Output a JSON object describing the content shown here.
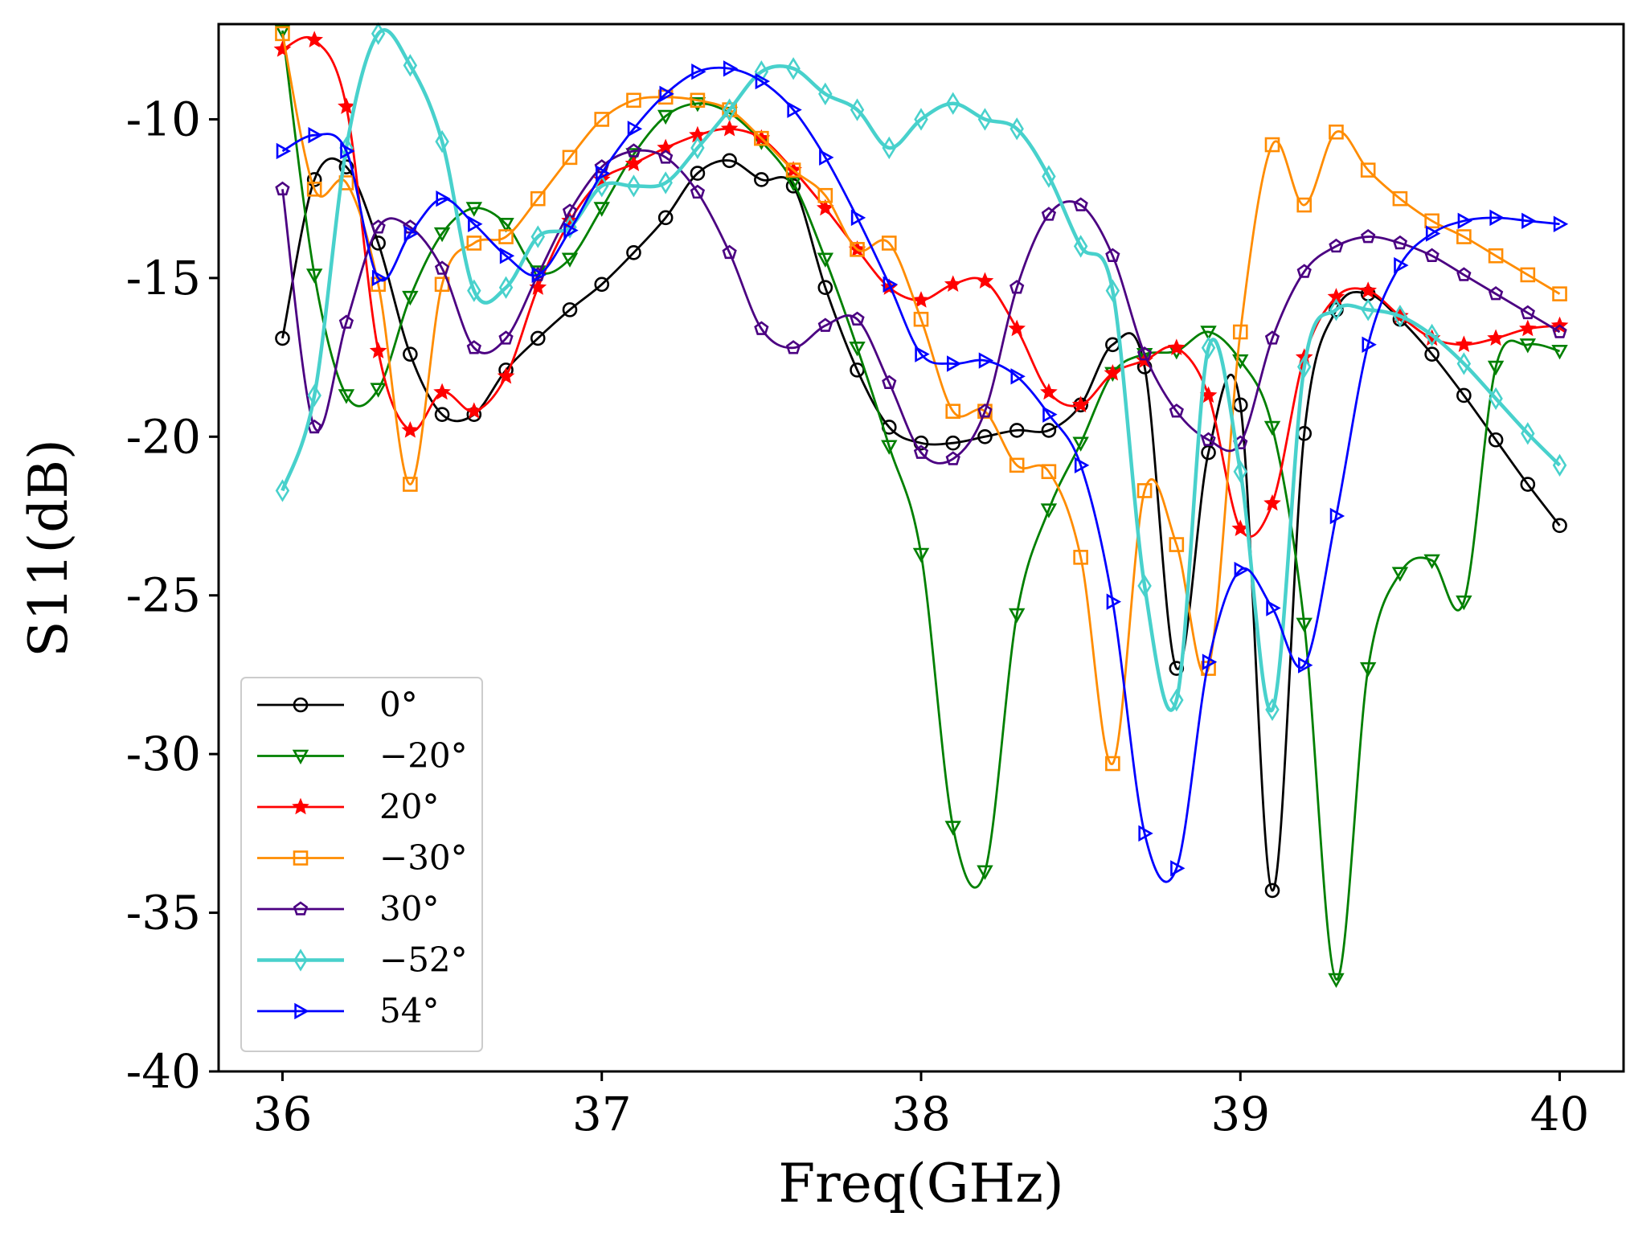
{
  "chart_data": {
    "type": "line",
    "title": "",
    "xlabel": "Freq(GHz)",
    "ylabel": "S11(dB)",
    "xlim": [
      35.8,
      40.2
    ],
    "ylim": [
      -40,
      -7
    ],
    "xticks": [
      36,
      37,
      38,
      39,
      40
    ],
    "xtick_labels": [
      "36",
      "37",
      "38",
      "39",
      "40"
    ],
    "yticks": [
      -40,
      -35,
      -30,
      -25,
      -20,
      -15,
      -10
    ],
    "ytick_labels": [
      "-40",
      "-35",
      "-30",
      "-25",
      "-20",
      "-15",
      "-10"
    ],
    "grid": false,
    "legend_position": "lower-left",
    "x": [
      36.0,
      36.1,
      36.2,
      36.3,
      36.4,
      36.5,
      36.6,
      36.7,
      36.8,
      36.9,
      37.0,
      37.1,
      37.2,
      37.3,
      37.4,
      37.5,
      37.6,
      37.7,
      37.8,
      37.9,
      38.0,
      38.1,
      38.2,
      38.3,
      38.4,
      38.5,
      38.6,
      38.7,
      38.8,
      38.9,
      39.0,
      39.1,
      39.2,
      39.3,
      39.4,
      39.5,
      39.6,
      39.7,
      39.8,
      39.9,
      40.0
    ],
    "series": [
      {
        "name": "0°",
        "color": "#000000",
        "marker": "circle",
        "values": [
          -16.9,
          -11.9,
          -11.5,
          -13.9,
          -17.4,
          -19.3,
          -19.3,
          -17.9,
          -16.9,
          -16.0,
          -15.2,
          -14.2,
          -13.1,
          -11.7,
          -11.3,
          -11.9,
          -12.1,
          -15.3,
          -17.9,
          -19.7,
          -20.2,
          -20.2,
          -20.0,
          -19.8,
          -19.8,
          -19.0,
          -17.1,
          -17.8,
          -27.3,
          -20.5,
          -19.0,
          -34.3,
          -19.9,
          -16.0,
          -15.5,
          -16.3,
          -17.4,
          -18.7,
          -20.1,
          -21.5,
          -22.8
        ]
      },
      {
        "name": "−20°",
        "color": "#008000",
        "marker": "triangle-down",
        "values": [
          -7.2,
          -14.9,
          -18.7,
          -18.5,
          -15.6,
          -13.6,
          -12.8,
          -13.3,
          -14.8,
          -14.4,
          -12.8,
          -11.1,
          -9.9,
          -9.5,
          -9.8,
          -10.7,
          -12.0,
          -14.4,
          -17.2,
          -20.3,
          -23.7,
          -32.3,
          -33.7,
          -25.6,
          -22.3,
          -20.2,
          -18.0,
          -17.4,
          -17.3,
          -16.7,
          -17.6,
          -19.7,
          -25.9,
          -37.1,
          -27.3,
          -24.3,
          -23.9,
          -25.2,
          -17.8,
          -17.1,
          -17.3
        ]
      },
      {
        "name": "20°",
        "color": "#ff0000",
        "marker": "star",
        "values": [
          -7.8,
          -7.5,
          -9.6,
          -17.3,
          -19.8,
          -18.6,
          -19.2,
          -18.1,
          -15.3,
          -13.2,
          -11.9,
          -11.4,
          -10.9,
          -10.5,
          -10.3,
          -10.6,
          -11.6,
          -12.8,
          -14.1,
          -15.3,
          -15.7,
          -15.2,
          -15.1,
          -16.6,
          -18.6,
          -19.0,
          -18.0,
          -17.6,
          -17.2,
          -18.7,
          -22.9,
          -22.1,
          -17.5,
          -15.6,
          -15.4,
          -16.2,
          -16.9,
          -17.1,
          -16.9,
          -16.6,
          -16.5
        ]
      },
      {
        "name": "−30°",
        "color": "#ff8c00",
        "marker": "square",
        "values": [
          -7.3,
          -12.2,
          -12.0,
          -15.2,
          -21.5,
          -15.2,
          -13.9,
          -13.7,
          -12.5,
          -11.2,
          -10.0,
          -9.4,
          -9.3,
          -9.4,
          -9.7,
          -10.6,
          -11.6,
          -12.4,
          -14.1,
          -13.9,
          -16.3,
          -19.2,
          -19.2,
          -20.9,
          -21.1,
          -23.8,
          -30.3,
          -21.7,
          -23.4,
          -27.3,
          -16.7,
          -10.8,
          -12.7,
          -10.4,
          -11.6,
          -12.5,
          -13.2,
          -13.7,
          -14.3,
          -14.9,
          -15.5
        ]
      },
      {
        "name": "30°",
        "color": "#4b0082",
        "marker": "pentagon",
        "values": [
          -12.2,
          -19.7,
          -16.4,
          -13.4,
          -13.4,
          -14.7,
          -17.2,
          -16.9,
          -14.9,
          -12.9,
          -11.5,
          -11.0,
          -11.2,
          -12.3,
          -14.2,
          -16.6,
          -17.2,
          -16.5,
          -16.3,
          -18.3,
          -20.5,
          -20.7,
          -19.2,
          -15.3,
          -13.0,
          -12.7,
          -14.3,
          -17.4,
          -19.2,
          -20.1,
          -20.2,
          -16.9,
          -14.8,
          -14.0,
          -13.7,
          -13.9,
          -14.3,
          -14.9,
          -15.5,
          -16.1,
          -16.7
        ]
      },
      {
        "name": "−52°",
        "color": "#48d1cc",
        "marker": "diamond",
        "values": [
          -21.7,
          -18.7,
          -10.9,
          -7.3,
          -8.3,
          -10.7,
          -15.4,
          -15.3,
          -13.7,
          -13.4,
          -12.1,
          -12.1,
          -12.0,
          -10.9,
          -9.7,
          -8.5,
          -8.4,
          -9.2,
          -9.7,
          -10.9,
          -10.0,
          -9.5,
          -10.0,
          -10.3,
          -11.8,
          -14.0,
          -15.4,
          -24.7,
          -28.3,
          -17.2,
          -21.1,
          -28.6,
          -17.8,
          -16.0,
          -16.0,
          -16.2,
          -16.8,
          -17.7,
          -18.8,
          -19.9,
          -20.9
        ]
      },
      {
        "name": "54°",
        "color": "#0000ff",
        "marker": "triangle-right",
        "values": [
          -11.0,
          -10.5,
          -11.0,
          -15.0,
          -13.6,
          -12.5,
          -13.3,
          -14.3,
          -14.9,
          -13.5,
          -11.7,
          -10.3,
          -9.2,
          -8.5,
          -8.4,
          -8.8,
          -9.7,
          -11.2,
          -13.1,
          -15.2,
          -17.4,
          -17.7,
          -17.6,
          -18.1,
          -19.3,
          -20.9,
          -25.2,
          -32.5,
          -33.6,
          -27.1,
          -24.2,
          -25.4,
          -27.2,
          -22.5,
          -17.1,
          -14.6,
          -13.6,
          -13.2,
          -13.1,
          -13.2,
          -13.3
        ]
      }
    ]
  }
}
